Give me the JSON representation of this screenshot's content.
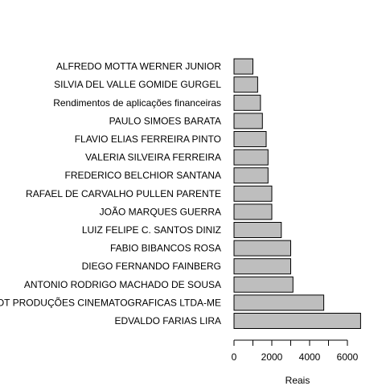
{
  "chart_data": {
    "type": "bar",
    "orientation": "horizontal",
    "categories": [
      "EDVALDO FARIAS LIRA",
      "CAPIVARA FILMES E DOT PRODUÇÕES CINEMATOGRAFICAS LTDA-ME",
      "ANTONIO RODRIGO MACHADO DE SOUSA",
      "DIEGO FERNANDO FAINBERG",
      "FABIO BIBANCOS ROSA",
      "LUIZ FELIPE C. SANTOS DINIZ",
      "JOÃO MARQUES GUERRA",
      "RAFAEL DE CARVALHO PULLEN PARENTE",
      "FREDERICO BELCHIOR SANTANA",
      "VALERIA SILVEIRA FERREIRA",
      "FLAVIO ELIAS FERREIRA PINTO",
      "PAULO SIMOES BARATA",
      "Rendimentos de aplicações financeiras",
      "SILVIA DEL VALLE GOMIDE GURGEL",
      "ALFREDO MOTTA WERNER JUNIOR"
    ],
    "values": [
      6700,
      4750,
      3120,
      3000,
      3000,
      2500,
      2000,
      2000,
      1800,
      1800,
      1700,
      1500,
      1400,
      1250,
      1000
    ],
    "xlabel": "Reais",
    "ylabel": "",
    "title": "",
    "xlim": [
      0,
      7000
    ],
    "xticks": [
      0,
      2000,
      4000,
      6000
    ],
    "xtick_labels": [
      "0",
      "2000",
      "4000",
      "6000"
    ],
    "grid": false,
    "bar_color": "#bebebe",
    "bar_border_color": "#000000"
  }
}
